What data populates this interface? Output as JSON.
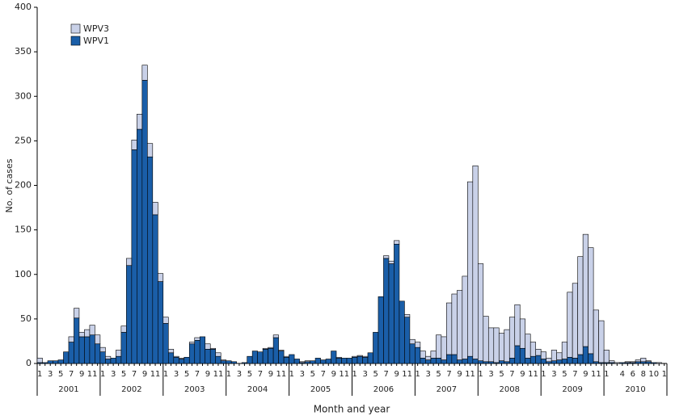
{
  "chart_data": {
    "type": "bar",
    "stacked": true,
    "x_label": "Month and year",
    "y_label": "No. of cases",
    "categories": [
      "1",
      null,
      "3",
      null,
      "5",
      null,
      "7",
      null,
      "9",
      null,
      "11",
      null,
      "1",
      null,
      "3",
      null,
      "5",
      null,
      "7",
      null,
      "9",
      null,
      "11",
      null,
      "1",
      null,
      "3",
      null,
      "5",
      null,
      "7",
      null,
      "9",
      null,
      "11",
      null,
      "1",
      null,
      "3",
      null,
      "5",
      null,
      "7",
      null,
      "9",
      null,
      "11",
      null,
      "1",
      null,
      "3",
      null,
      "5",
      null,
      "7",
      null,
      "9",
      null,
      "11",
      null,
      "1",
      null,
      "3",
      null,
      "5",
      null,
      "7",
      null,
      "9",
      null,
      "11",
      null,
      "1",
      null,
      "3",
      null,
      "5",
      null,
      "7",
      null,
      "9",
      null,
      "11",
      null,
      "1",
      null,
      "3",
      null,
      "5",
      null,
      "7",
      null,
      "9",
      null,
      "11",
      null,
      "1",
      null,
      "3",
      null,
      "5",
      null,
      "7",
      null,
      "9",
      null,
      "11",
      null,
      "1",
      null,
      null,
      "4",
      null,
      "6",
      null,
      "8",
      null,
      "10",
      null,
      "1"
    ],
    "years": [
      "2001",
      "2002",
      "2003",
      "2004",
      "2005",
      "2006",
      "2007",
      "2008",
      "2009",
      "2010"
    ],
    "series": [
      {
        "name": "WPV1",
        "color": "#1a5ea8",
        "values": [
          1,
          1,
          3,
          3,
          4,
          13,
          24,
          51,
          30,
          30,
          32,
          22,
          13,
          5,
          6,
          8,
          35,
          110,
          240,
          263,
          318,
          232,
          167,
          92,
          45,
          12,
          7,
          5,
          7,
          22,
          26,
          30,
          16,
          16,
          8,
          3,
          3,
          2,
          0,
          1,
          8,
          14,
          13,
          16,
          17,
          29,
          14,
          7,
          10,
          5,
          1,
          2,
          3,
          6,
          4,
          5,
          14,
          6,
          6,
          6,
          7,
          8,
          7,
          12,
          35,
          75,
          118,
          112,
          134,
          70,
          52,
          22,
          18,
          6,
          4,
          6,
          6,
          4,
          10,
          10,
          4,
          5,
          8,
          5,
          3,
          2,
          2,
          1,
          3,
          2,
          6,
          20,
          17,
          6,
          8,
          9,
          5,
          2,
          3,
          4,
          5,
          7,
          6,
          10,
          19,
          11,
          2,
          1,
          1,
          1,
          0,
          1,
          1,
          1,
          2,
          2,
          2,
          1,
          0,
          0
        ]
      },
      {
        "name": "WPV3",
        "color": "#c9d1e8",
        "values": [
          5,
          0,
          0,
          0,
          0,
          0,
          6,
          11,
          5,
          8,
          11,
          10,
          5,
          3,
          0,
          7,
          7,
          8,
          11,
          17,
          17,
          15,
          14,
          9,
          7,
          4,
          1,
          1,
          0,
          2,
          3,
          0,
          6,
          1,
          4,
          1,
          0,
          0,
          0,
          0,
          0,
          0,
          0,
          1,
          1,
          3,
          1,
          1,
          0,
          0,
          1,
          1,
          0,
          0,
          0,
          0,
          0,
          1,
          0,
          0,
          1,
          1,
          1,
          0,
          0,
          0,
          3,
          3,
          4,
          0,
          3,
          5,
          6,
          8,
          4,
          8,
          26,
          26,
          58,
          68,
          78,
          93,
          196,
          217,
          109,
          51,
          38,
          39,
          31,
          36,
          46,
          46,
          33,
          27,
          16,
          7,
          8,
          4,
          12,
          8,
          19,
          73,
          84,
          110,
          126,
          119,
          58,
          47,
          14,
          2,
          1,
          0,
          1,
          1,
          2,
          4,
          1,
          0,
          1,
          0
        ]
      }
    ],
    "ylim": [
      0,
      400
    ],
    "yticks": [
      0,
      50,
      100,
      150,
      200,
      250,
      300,
      350,
      400
    ],
    "legend": "top-left",
    "grid": false
  }
}
